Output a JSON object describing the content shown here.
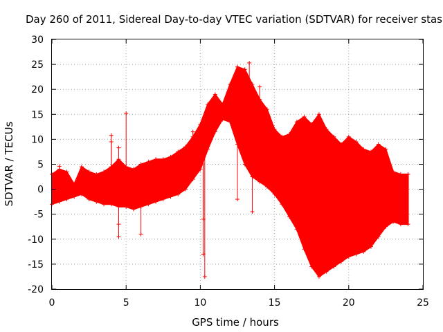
{
  "chart_data": {
    "type": "scatter",
    "title": "Day 260 of 2011, Sidereal Day-to-day VTEC variation (SDTVAR) for receiver stas",
    "xlabel": "GPS time / hours",
    "ylabel": "SDTVAR / TECUs",
    "xlim": [
      0,
      25
    ],
    "ylim": [
      -20,
      30
    ],
    "x_ticks": [
      0,
      5,
      10,
      15,
      20,
      25
    ],
    "y_ticks": [
      -20,
      -15,
      -10,
      -5,
      0,
      5,
      10,
      15,
      20,
      25,
      30
    ],
    "x_tick_labels": [
      "0",
      "5",
      "10",
      "15",
      "20",
      "25"
    ],
    "y_tick_labels": [
      "-20",
      "-15",
      "-10",
      "-5",
      "0",
      "5",
      "10",
      "15",
      "20",
      "25",
      "30"
    ],
    "grid": true,
    "marker": "+",
    "series": [
      {
        "name": "SDTVAR",
        "color": "#ff0000",
        "envelope": {
          "x": [
            0.0,
            0.5,
            1.0,
            1.5,
            2.0,
            2.5,
            3.0,
            3.5,
            4.0,
            4.5,
            5.0,
            5.5,
            6.0,
            6.5,
            7.0,
            7.5,
            8.0,
            8.5,
            9.0,
            9.5,
            10.0,
            10.5,
            11.0,
            11.5,
            12.0,
            12.5,
            13.0,
            13.5,
            14.0,
            14.5,
            15.0,
            15.5,
            16.0,
            16.5,
            17.0,
            17.5,
            18.0,
            18.5,
            19.0,
            19.5,
            20.0,
            20.5,
            21.0,
            21.5,
            22.0,
            22.5,
            23.0,
            23.5,
            24.0
          ],
          "upper": [
            3.0,
            4.0,
            3.5,
            1.0,
            4.5,
            3.5,
            3.0,
            3.5,
            4.5,
            6.0,
            4.5,
            4.0,
            5.0,
            5.5,
            6.0,
            6.0,
            6.5,
            7.5,
            8.5,
            10.5,
            13.0,
            17.0,
            19.0,
            17.0,
            21.0,
            24.5,
            24.0,
            21.0,
            18.0,
            16.0,
            12.0,
            10.5,
            11.0,
            13.5,
            14.5,
            13.0,
            15.0,
            12.0,
            10.5,
            9.0,
            10.5,
            9.5,
            8.0,
            7.5,
            9.0,
            8.0,
            3.5,
            3.0,
            3.0
          ],
          "lower": [
            -3.0,
            -2.5,
            -2.0,
            -1.5,
            -1.0,
            -2.0,
            -2.5,
            -3.0,
            -3.0,
            -3.5,
            -3.5,
            -4.0,
            -3.5,
            -3.0,
            -2.5,
            -2.0,
            -1.5,
            -1.0,
            0.0,
            2.0,
            4.0,
            8.0,
            11.5,
            14.0,
            13.5,
            9.0,
            5.0,
            2.5,
            1.5,
            0.5,
            -1.0,
            -3.0,
            -5.5,
            -8.0,
            -12.0,
            -15.5,
            -17.5,
            -16.5,
            -15.5,
            -14.5,
            -13.5,
            -13.0,
            -12.5,
            -11.5,
            -9.5,
            -7.5,
            -6.5,
            -7.0,
            -7.0
          ]
        },
        "outliers": [
          {
            "x": 0.5,
            "y": 4.6
          },
          {
            "x": 4.0,
            "y": 10.8
          },
          {
            "x": 4.0,
            "y": 9.5
          },
          {
            "x": 4.5,
            "y": 8.3
          },
          {
            "x": 4.5,
            "y": -9.5
          },
          {
            "x": 4.5,
            "y": -7.0
          },
          {
            "x": 5.0,
            "y": 15.2
          },
          {
            "x": 6.0,
            "y": -9.0
          },
          {
            "x": 9.5,
            "y": 11.5
          },
          {
            "x": 10.3,
            "y": -17.5
          },
          {
            "x": 10.2,
            "y": -13.0
          },
          {
            "x": 10.2,
            "y": -6.0
          },
          {
            "x": 13.3,
            "y": 25.3
          },
          {
            "x": 13.5,
            "y": -4.5
          },
          {
            "x": 12.5,
            "y": -2.0
          },
          {
            "x": 14.0,
            "y": 20.5
          }
        ]
      }
    ]
  }
}
